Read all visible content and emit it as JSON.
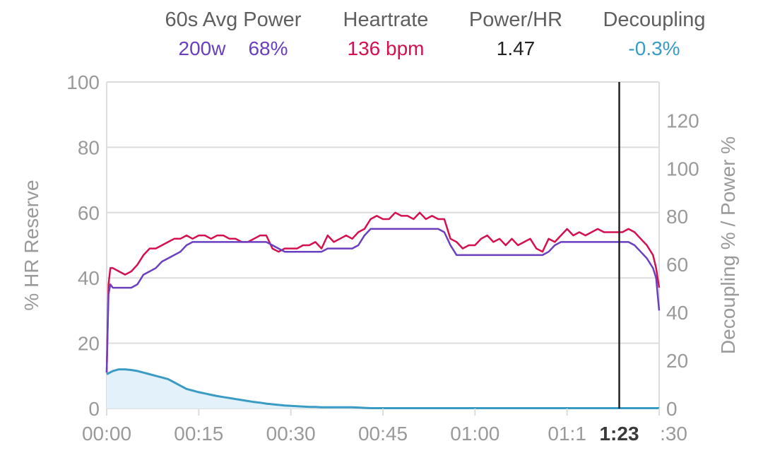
{
  "header": {
    "power": {
      "label": "60s Avg Power",
      "watts": "200w",
      "percent": "68%"
    },
    "heartrate": {
      "label": "Heartrate",
      "value": "136 bpm"
    },
    "power_hr": {
      "label": "Power/HR",
      "value": "1.47"
    },
    "decoupling": {
      "label": "Decoupling",
      "value": "-0.3%"
    }
  },
  "colors": {
    "power": "#6a3fc0",
    "heartrate": "#d4104e",
    "power_hr": "#222222",
    "decoupling": "#3a9cc4",
    "decoupling_fill": "#e3f2fa",
    "grid": "#dddddd",
    "cursor": "#222222"
  },
  "chart_data": {
    "type": "line",
    "xlabel": "",
    "ylabel_left": "% HR Reserve",
    "ylabel_right": "Decoupling % / Power %",
    "xlim": [
      0,
      90
    ],
    "ylim_left": [
      0,
      100
    ],
    "ylim_right": [
      0,
      136
    ],
    "x_ticks": [
      0,
      15,
      30,
      45,
      60,
      75,
      90
    ],
    "x_tick_labels": [
      "00:00",
      "00:15",
      "00:30",
      "00:45",
      "01:00",
      "01:1",
      ":30"
    ],
    "y_left_ticks": [
      0,
      20,
      40,
      60,
      80,
      100
    ],
    "y_left_tick_labels": [
      "0",
      "20",
      "40",
      "60",
      "80",
      "100"
    ],
    "y_right_ticks": [
      0,
      20,
      40,
      60,
      80,
      100,
      120
    ],
    "y_right_tick_labels": [
      "0",
      "20",
      "40",
      "60",
      "80",
      "100",
      "120"
    ],
    "cursor": {
      "x": 83.5,
      "label": "1:23"
    },
    "grid": true,
    "series": [
      {
        "axis": "left",
        "color": "#d4104e",
        "x": [
          0,
          0.3,
          0.6,
          1,
          2,
          3,
          4,
          5,
          6,
          7,
          8,
          9,
          10,
          11,
          12,
          13,
          14,
          15,
          16,
          17,
          18,
          19,
          20,
          21,
          22,
          23,
          24,
          25,
          26,
          27,
          28,
          29,
          30,
          31,
          32,
          33,
          34,
          35,
          36,
          37,
          38,
          39,
          40,
          41,
          42,
          43,
          44,
          45,
          46,
          47,
          48,
          49,
          50,
          51,
          52,
          53,
          54,
          55,
          56,
          57,
          58,
          59,
          60,
          61,
          62,
          63,
          64,
          65,
          66,
          67,
          68,
          69,
          70,
          71,
          72,
          73,
          74,
          75,
          76,
          77,
          78,
          79,
          80,
          81,
          82,
          83,
          84,
          85,
          86,
          87,
          88,
          89,
          89.5,
          90
        ],
        "values": [
          11,
          38,
          43,
          43,
          42,
          41,
          42,
          44,
          47,
          49,
          49,
          50,
          51,
          52,
          52,
          53,
          52,
          53,
          53,
          52,
          53,
          53,
          52,
          52,
          51,
          51,
          52,
          53,
          53,
          49,
          48,
          49,
          49,
          49,
          50,
          50,
          51,
          49,
          53,
          51,
          52,
          53,
          52,
          54,
          55,
          58,
          59,
          58,
          58,
          60,
          59,
          59,
          58,
          60,
          58,
          59,
          58,
          58,
          52,
          51,
          49,
          50,
          50,
          52,
          53,
          51,
          52,
          50,
          52,
          50,
          51,
          52,
          49,
          48,
          52,
          51,
          53,
          55,
          53,
          54,
          53,
          54,
          55,
          54,
          54,
          54,
          54,
          55,
          54,
          52,
          50,
          47,
          43,
          37
        ]
      },
      {
        "axis": "left",
        "color": "#6a3fc0",
        "x": [
          0,
          0.3,
          0.6,
          1,
          2,
          3,
          4,
          5,
          6,
          7,
          8,
          9,
          10,
          11,
          12,
          13,
          14,
          15,
          16,
          17,
          18,
          19,
          20,
          21,
          22,
          23,
          24,
          25,
          26,
          27,
          28,
          29,
          30,
          31,
          32,
          33,
          34,
          35,
          36,
          37,
          38,
          39,
          40,
          41,
          42,
          43,
          44,
          45,
          46,
          47,
          48,
          49,
          50,
          51,
          52,
          53,
          54,
          55,
          56,
          57,
          58,
          59,
          60,
          61,
          62,
          63,
          64,
          65,
          66,
          67,
          68,
          69,
          70,
          71,
          72,
          73,
          74,
          75,
          76,
          77,
          78,
          79,
          80,
          81,
          82,
          83,
          84,
          85,
          86,
          87,
          88,
          89,
          89.5,
          90
        ],
        "values": [
          11,
          35,
          38,
          37,
          37,
          37,
          37,
          38,
          41,
          42,
          43,
          45,
          46,
          47,
          48,
          50,
          51,
          51,
          51,
          51,
          51,
          51,
          51,
          51,
          51,
          51,
          51,
          51,
          51,
          50,
          49,
          48,
          48,
          48,
          48,
          48,
          48,
          48,
          49,
          49,
          49,
          49,
          49,
          50,
          53,
          55,
          55,
          55,
          55,
          55,
          55,
          55,
          55,
          55,
          55,
          55,
          55,
          54,
          50,
          47,
          47,
          47,
          47,
          47,
          47,
          47,
          47,
          47,
          47,
          47,
          47,
          47,
          47,
          47,
          48,
          50,
          51,
          51,
          51,
          51,
          51,
          51,
          51,
          51,
          51,
          51,
          51,
          51,
          50,
          48,
          46,
          43,
          40,
          30
        ]
      },
      {
        "axis": "left",
        "fill": true,
        "color": "#3a9cc4",
        "x": [
          0,
          1,
          2,
          3,
          4,
          5,
          6,
          7,
          8,
          9,
          10,
          11,
          12,
          13,
          14,
          15,
          16,
          17,
          18,
          19,
          20,
          21,
          22,
          23,
          24,
          25,
          26,
          27,
          28,
          29,
          30,
          31,
          32,
          33,
          34,
          35,
          36,
          37,
          38,
          39,
          40,
          41,
          42,
          43,
          44,
          45,
          47,
          50,
          55,
          60,
          65,
          70,
          75,
          80,
          85,
          90
        ],
        "values": [
          10.5,
          11.5,
          12,
          12,
          11.8,
          11.5,
          11,
          10.5,
          10,
          9.5,
          9,
          8,
          7,
          6,
          5.5,
          5,
          4.6,
          4.2,
          3.8,
          3.5,
          3.2,
          2.9,
          2.6,
          2.3,
          2,
          1.8,
          1.5,
          1.3,
          1.1,
          0.9,
          0.8,
          0.7,
          0.6,
          0.5,
          0.5,
          0.4,
          0.4,
          0.4,
          0.4,
          0.4,
          0.4,
          0.3,
          0.2,
          0.1,
          0.1,
          0.1,
          0.1,
          0.1,
          0.1,
          0.1,
          0.1,
          0.1,
          0.1,
          0.1,
          0.1,
          0.1
        ]
      }
    ]
  }
}
